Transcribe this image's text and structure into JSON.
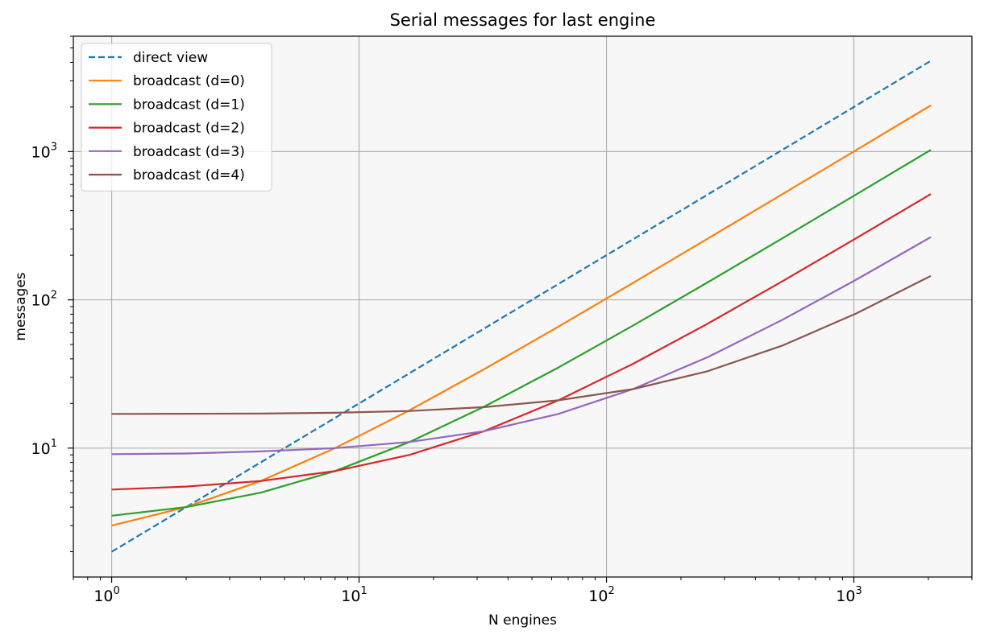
{
  "chart_data": {
    "type": "line",
    "title": "Serial messages for last engine",
    "xlabel": "N engines",
    "ylabel": "messages",
    "xscale": "log",
    "yscale": "log",
    "xlim": [
      0.7,
      3000
    ],
    "ylim": [
      1.35,
      6000
    ],
    "grid": true,
    "legend_position": "top-left",
    "plot_background": "#f7f7f7",
    "x_ticks": [
      {
        "base": "10",
        "exp": "0",
        "value": 1
      },
      {
        "base": "10",
        "exp": "1",
        "value": 10
      },
      {
        "base": "10",
        "exp": "2",
        "value": 100
      },
      {
        "base": "10",
        "exp": "3",
        "value": 1000
      }
    ],
    "y_ticks": [
      {
        "base": "10",
        "exp": "1",
        "value": 10
      },
      {
        "base": "10",
        "exp": "2",
        "value": 100
      },
      {
        "base": "10",
        "exp": "3",
        "value": 1000
      }
    ],
    "x": [
      1,
      2,
      4,
      8,
      16,
      32,
      64,
      128,
      256,
      512,
      1024,
      2048
    ],
    "series": [
      {
        "name": "direct view",
        "color": "#1f77b4",
        "dashed": true,
        "values": [
          2,
          4,
          8,
          16,
          32,
          64,
          128,
          256,
          512,
          1024,
          2048,
          4096
        ]
      },
      {
        "name": "broadcast (d=0)",
        "color": "#ff7f0e",
        "dashed": false,
        "values": [
          3,
          4,
          6,
          10,
          18,
          34,
          66,
          130,
          258,
          514,
          1026,
          2050
        ]
      },
      {
        "name": "broadcast (d=1)",
        "color": "#2ca02c",
        "dashed": false,
        "values": [
          3.5,
          4,
          5,
          7,
          11,
          19,
          35,
          67,
          131,
          259,
          515,
          1027
        ]
      },
      {
        "name": "broadcast (d=2)",
        "color": "#d62728",
        "dashed": false,
        "values": [
          5.25,
          5.5,
          6,
          7,
          9,
          13,
          21,
          37,
          69,
          133,
          261,
          517
        ]
      },
      {
        "name": "broadcast (d=3)",
        "color": "#9467bd",
        "dashed": false,
        "values": [
          9.1,
          9.2,
          9.5,
          10,
          11,
          13,
          17,
          25,
          41,
          73,
          137,
          265
        ]
      },
      {
        "name": "broadcast (d=4)",
        "color": "#8c564b",
        "dashed": false,
        "values": [
          17,
          17.05,
          17.1,
          17.3,
          17.8,
          18.9,
          21,
          25,
          33,
          49,
          81,
          145
        ]
      }
    ]
  }
}
